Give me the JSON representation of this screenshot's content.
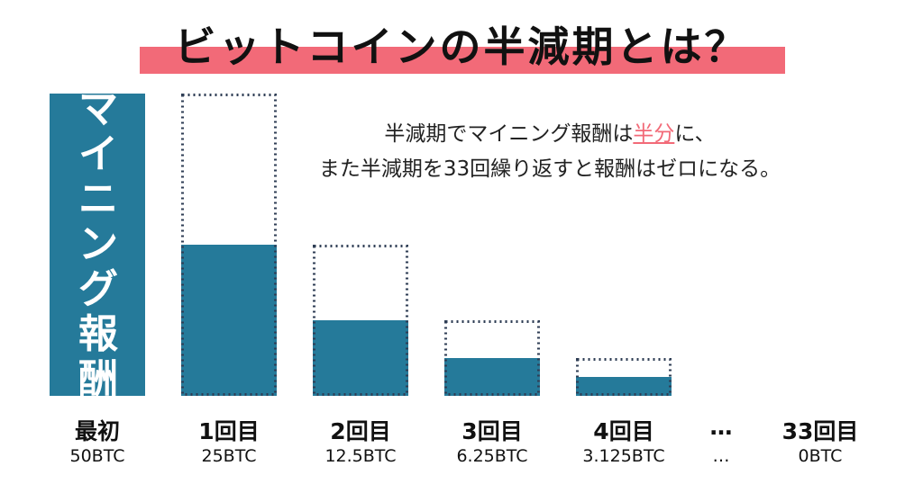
{
  "title": "ビットコインの半減期とは？",
  "description": {
    "line1_pre": "半減期でマイニング報酬は",
    "line1_highlight": "半分",
    "line1_post": "に、",
    "line2": "また半減期を33回繰り返すと報酬はゼロになる。"
  },
  "y_axis_label": [
    "マ",
    "イ",
    "ニ",
    "ン",
    "グ",
    "報",
    "酬"
  ],
  "colors": {
    "bar": "#257a9a",
    "accent": "#f26a78",
    "dotted": "#2f3e55"
  },
  "chart_data": {
    "type": "bar",
    "categories": [
      "最初",
      "1回目",
      "2回目",
      "3回目",
      "4回目",
      "…",
      "33回目"
    ],
    "value_labels": [
      "50BTC",
      "25BTC",
      "12.5BTC",
      "6.25BTC",
      "3.125BTC",
      "…",
      "0BTC"
    ],
    "values": [
      50,
      25,
      12.5,
      6.25,
      3.125,
      null,
      0
    ],
    "previous_values": [
      null,
      50,
      25,
      12.5,
      6.25,
      null,
      null
    ],
    "ylim": [
      0,
      50
    ]
  }
}
